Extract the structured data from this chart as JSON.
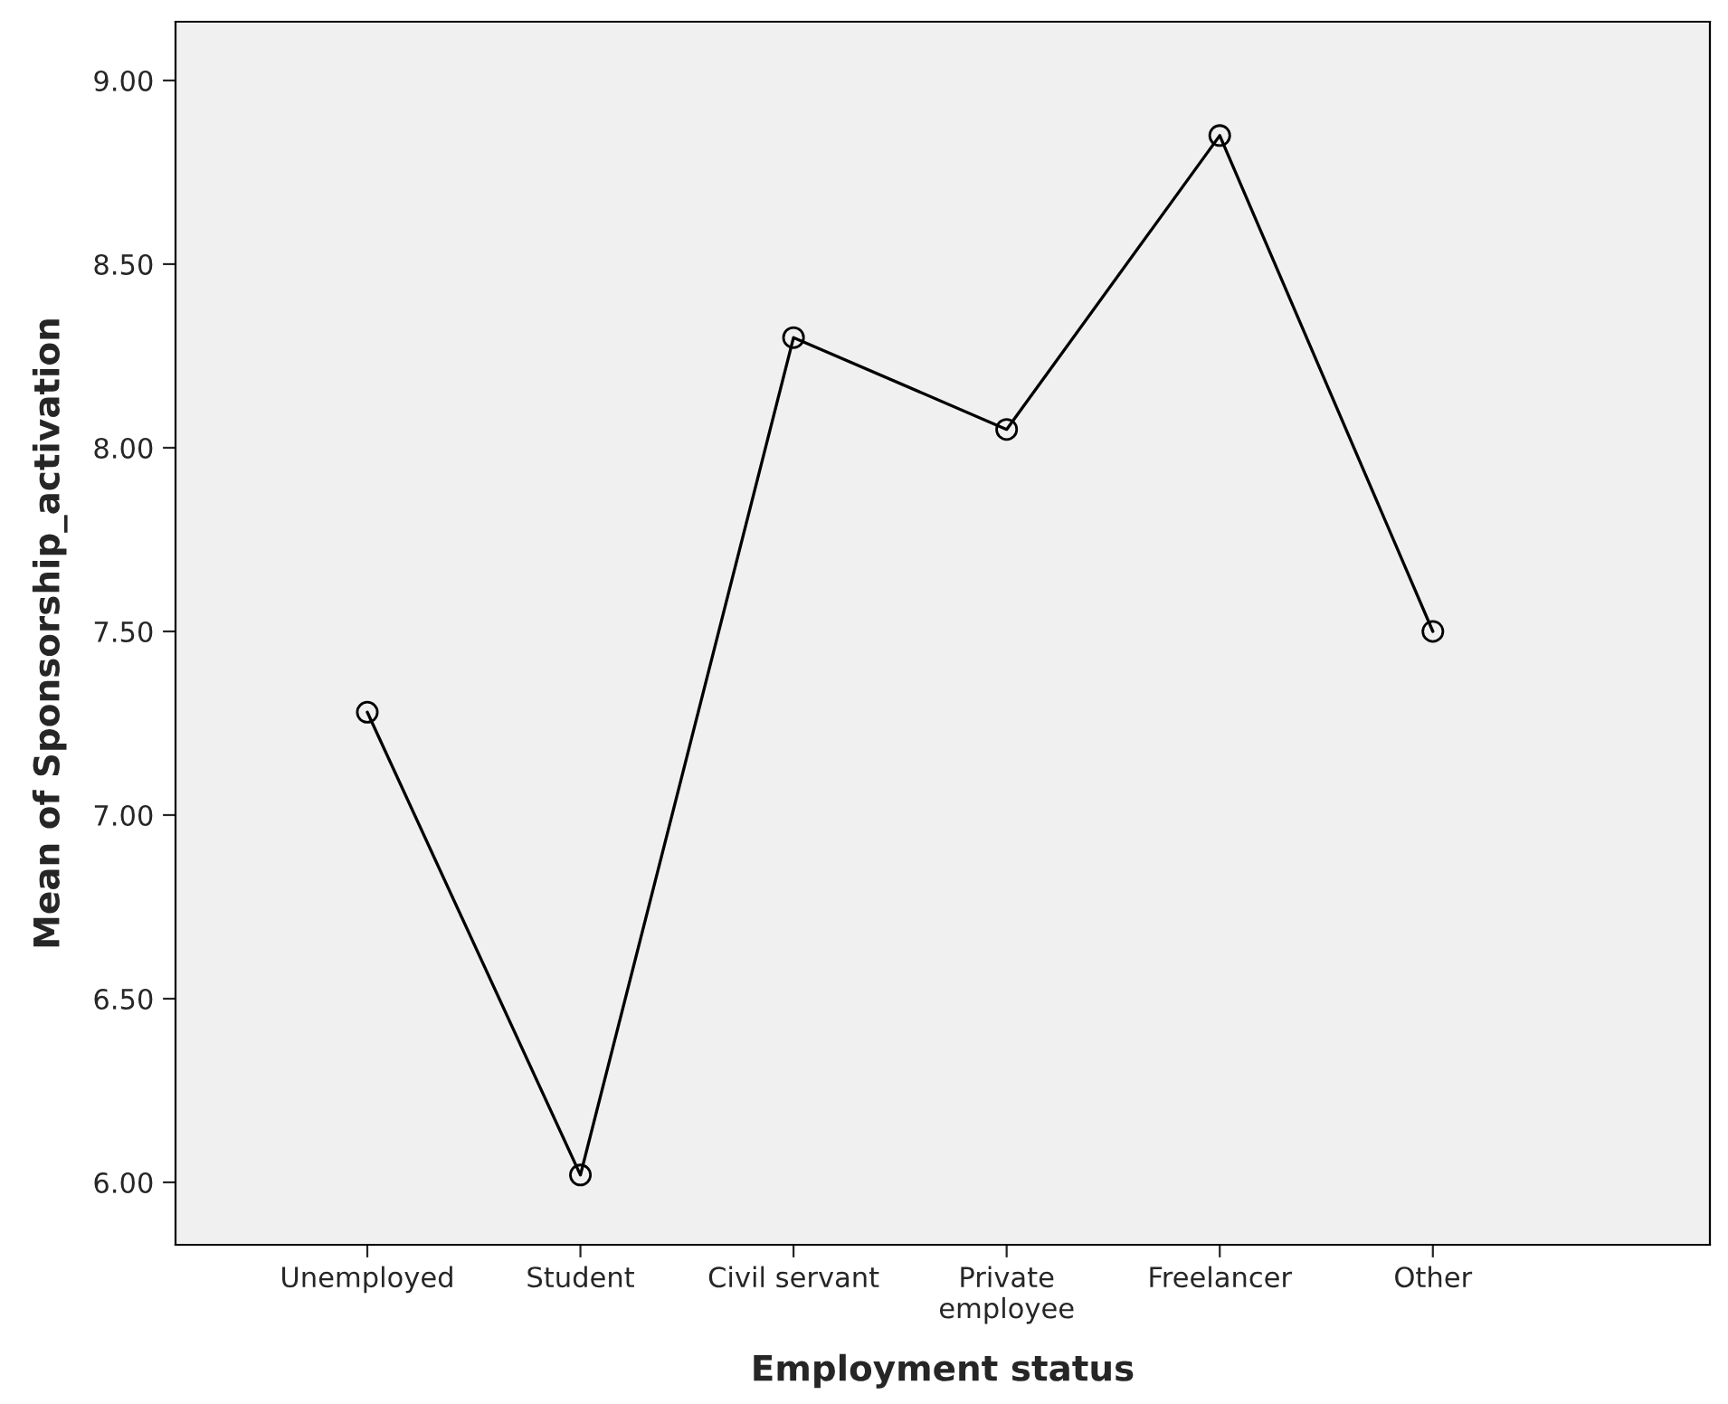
{
  "chart_data": {
    "type": "line",
    "xlabel": "Employment status",
    "ylabel": "Mean of Sponsorship_activation",
    "categories": [
      "Unemployed",
      "Student",
      "Civil servant",
      "Private\nemployee",
      "Freelancer",
      "Other"
    ],
    "series": [
      {
        "color": "#000000",
        "values": [
          7.28,
          6.02,
          8.3,
          8.05,
          8.85,
          7.5
        ]
      }
    ],
    "ylim": [
      5.83,
      9.16
    ],
    "yticks": [
      {
        "value": 6,
        "label": "6.00"
      },
      {
        "value": 6.5,
        "label": "6.50"
      },
      {
        "value": 7,
        "label": "7.00"
      },
      {
        "value": 7.5,
        "label": "7.50"
      },
      {
        "value": 8,
        "label": "8.00"
      },
      {
        "value": 8.5,
        "label": "8.50"
      },
      {
        "value": 9,
        "label": "9.00"
      }
    ],
    "marker": "circle",
    "line_style": "solid",
    "grid": false,
    "legend": false
  }
}
